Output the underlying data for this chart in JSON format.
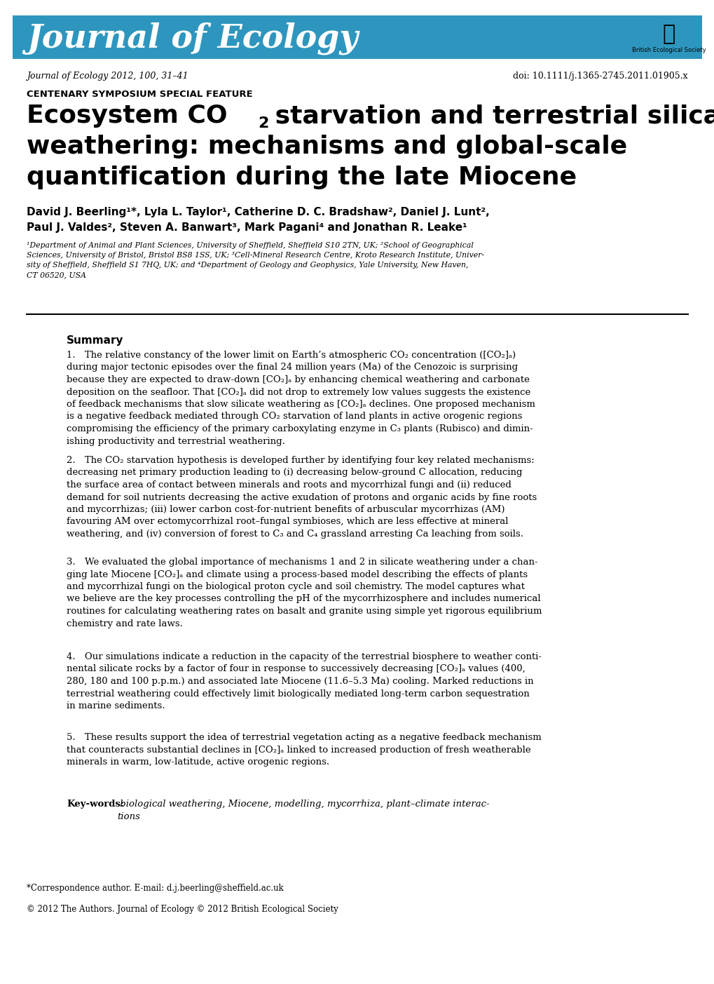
{
  "header_bg_color": "#2E96BE",
  "header_text": "Journal of Ecology",
  "header_text_color": "#FFFFFF",
  "header_font_size": 32,
  "journal_line": "Journal of Ecology 2012, 100, 31–41",
  "doi_line": "doi: 10.1111/j.1365-2745.2011.01905.x",
  "special_feature": "CENTENARY SYMPOSIUM SPECIAL FEATURE",
  "title_line1": "Ecosystem CO",
  "title_line1_sub": "2",
  "title_line1_rest": " starvation and terrestrial silicate",
  "title_line2": "weathering: mechanisms and global-scale",
  "title_line3": "quantification during the late Miocene",
  "authors_line1": "David J. Beerling¹*, Lyla L. Taylor¹, Catherine D. C. Bradshaw², Daniel J. Lunt²,",
  "authors_line2": "Paul J. Valdes², Steven A. Banwart³, Mark Pagani⁴ and Jonathan R. Leake¹",
  "affiliations": "¹Department of Animal and Plant Sciences, University of Sheffield, Sheffield S10 2TN, UK; ²School of Geographical\nSciences, University of Bristol, Bristol BS8 1SS, UK; ³Cell-Mineral Research Centre, Kroto Research Institute, Univer-\nsity of Sheffield, Sheffield S1 7HQ, UK; and ⁴Department of Geology and Geophysics, Yale University, New Haven,\nCT 06520, USA",
  "summary_title": "Summary",
  "summary_1": "1. The relative constancy of the lower limit on Earth’s atmospheric CO₂ concentration ([CO₂]ₐ)\nduring major tectonic episodes over the final 24 million years (Ma) of the Cenozoic is surprising\nbecause they are expected to draw-down [CO₂]ₐ by enhancing chemical weathering and carbonate\ndeposition on the seafloor. That [CO₂]ₐ did not drop to extremely low values suggests the existence\nof feedback mechanisms that slow silicate weathering as [CO₂]ₐ declines. One proposed mechanism\nis a negative feedback mediated through CO₂ starvation of land plants in active orogenic regions\ncompromising the efficiency of the primary carboxylating enzyme in C₃ plants (Rubisco) and dimin-\nishing productivity and terrestrial weathering.",
  "summary_2": "2. The CO₂ starvation hypothesis is developed further by identifying four key related mechanisms:\ndecreasing net primary production leading to (i) decreasing below-ground C allocation, reducing\nthe surface area of contact between minerals and roots and mycorrhizal fungi and (ii) reduced\ndemand for soil nutrients decreasing the active exudation of protons and organic acids by fine roots\nand mycorrhizas; (iii) lower carbon cost-for-nutrient benefits of arbuscular mycorrhizas (AM)\nfavouring AM over ectomycorrhizal root–fungal symbioses, which are less effective at mineral\nweathering, and (iv) conversion of forest to C₃ and C₄ grassland arresting Ca leaching from soils.",
  "summary_3": "3. We evaluated the global importance of mechanisms 1 and 2 in silicate weathering under a chan-\nging late Miocene [CO₂]ₐ and climate using a process-based model describing the effects of plants\nand mycorrhizal fungi on the biological proton cycle and soil chemistry. The model captures what\nwe believe are the key processes controlling the pH of the mycorrhizosphere and includes numerical\nroutines for calculating weathering rates on basalt and granite using simple yet rigorous equilibrium\nchemistry and rate laws.",
  "summary_4": "4. Our simulations indicate a reduction in the capacity of the terrestrial biosphere to weather conti-\nnental silicate rocks by a factor of four in response to successively decreasing [CO₂]ₐ values (400,\n280, 180 and 100 p.p.m.) and associated late Miocene (11.6–5.3 Ma) cooling. Marked reductions in\nterrestrial weathering could effectively limit biologically mediated long-term carbon sequestration\nin marine sediments.",
  "summary_5": "5. These results support the idea of terrestrial vegetation acting as a negative feedback mechanism\nthat counteracts substantial declines in [CO₂]ₐ linked to increased production of fresh weatherable\nminerals in warm, low-latitude, active orogenic regions.",
  "keywords_label": "Key-words:",
  "keywords_text": " biological weathering, Miocene, modelling, mycorrhiza, plant–climate interac-\ntions",
  "correspondence": "*Correspondence author. E-mail: d.j.beerling@sheffield.ac.uk",
  "copyright": "© 2012 The Authors. Journal of Ecology © 2012 British Ecological Society",
  "bg_color": "#FFFFFF",
  "text_color": "#000000"
}
